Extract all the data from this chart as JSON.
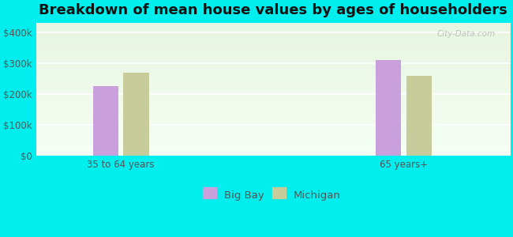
{
  "title": "Breakdown of mean house values by ages of householders",
  "categories": [
    "35 to 64 years",
    "65 years+"
  ],
  "series": {
    "Big Bay": [
      225000,
      310000
    ],
    "Michigan": [
      270000,
      258000
    ]
  },
  "bar_colors": {
    "Big Bay": "#c9a0dc",
    "Michigan": "#c8cc9a"
  },
  "background_color": "#00eeee",
  "plot_bg_top": "#e8f5e0",
  "plot_bg_bottom": "#f5fff5",
  "yticks": [
    0,
    100000,
    200000,
    300000,
    400000
  ],
  "ytick_labels": [
    "$0",
    "$100k",
    "$200k",
    "$300k",
    "$400k"
  ],
  "ylim": [
    0,
    430000
  ],
  "bar_width": 0.18,
  "title_fontsize": 13,
  "tick_fontsize": 8.5,
  "legend_fontsize": 9.5,
  "watermark": "City-Data.com"
}
